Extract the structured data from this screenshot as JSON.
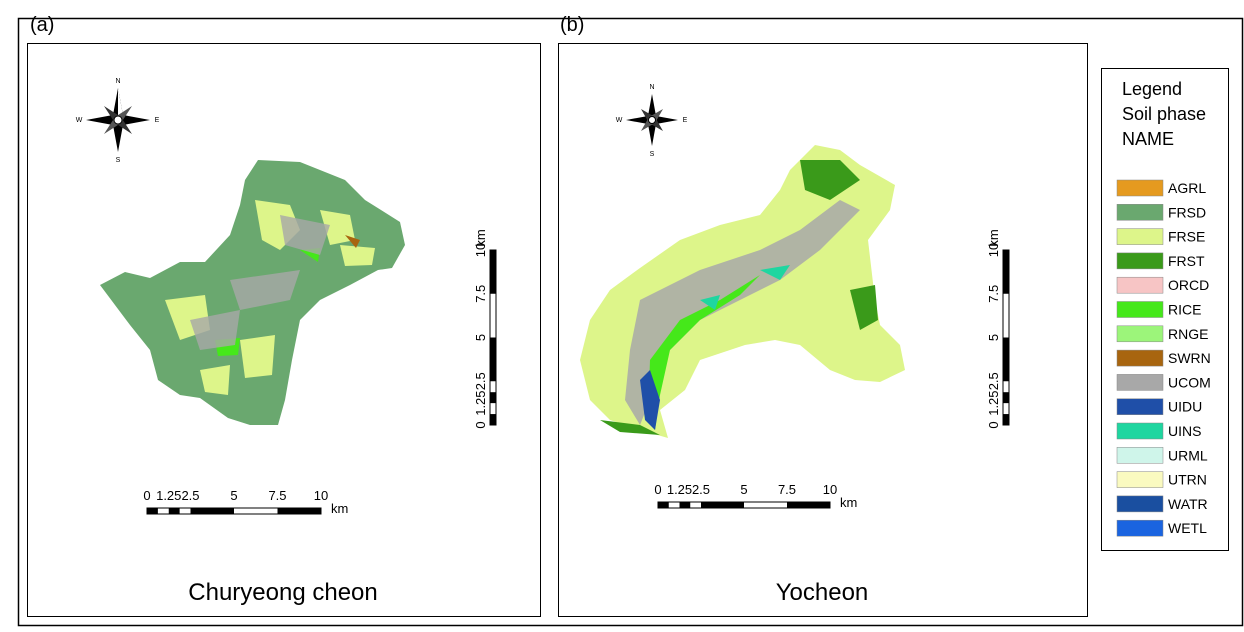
{
  "panels": [
    {
      "label": "(a)",
      "caption": "Churyeong cheon",
      "compass": {
        "n": "N",
        "s": "S",
        "e": "E",
        "w": "W"
      },
      "scale_labels": [
        "0",
        "1.25",
        "2.5",
        "5",
        "7.5",
        "10"
      ],
      "scale_unit": "km"
    },
    {
      "label": "(b)",
      "caption": "Yocheon",
      "compass": {
        "n": "N",
        "s": "S",
        "e": "E",
        "w": "W"
      },
      "scale_labels": [
        "0",
        "1.25",
        "2.5",
        "5",
        "7.5",
        "10"
      ],
      "scale_unit": "km"
    }
  ],
  "legend": {
    "title": "Legend",
    "subtitle": "Soil phase",
    "field": "NAME",
    "items": [
      {
        "name": "AGRL",
        "color": "#e59a1f"
      },
      {
        "name": "FRSD",
        "color": "#6aa86f"
      },
      {
        "name": "FRSE",
        "color": "#ddf58a"
      },
      {
        "name": "FRST",
        "color": "#3a9a1a"
      },
      {
        "name": "ORCD",
        "color": "#f7c5c5"
      },
      {
        "name": "RICE",
        "color": "#45e81a"
      },
      {
        "name": "RNGE",
        "color": "#9cf57a"
      },
      {
        "name": "SWRN",
        "color": "#a8650f"
      },
      {
        "name": "UCOM",
        "color": "#a8a8a8"
      },
      {
        "name": "UIDU",
        "color": "#1f4fa8"
      },
      {
        "name": "UINS",
        "color": "#1fd6a0"
      },
      {
        "name": "URML",
        "color": "#cff5ea"
      },
      {
        "name": "UTRN",
        "color": "#fafac0"
      },
      {
        "name": "WATR",
        "color": "#1a4fa0"
      },
      {
        "name": "WETL",
        "color": "#1a64e0"
      }
    ]
  }
}
